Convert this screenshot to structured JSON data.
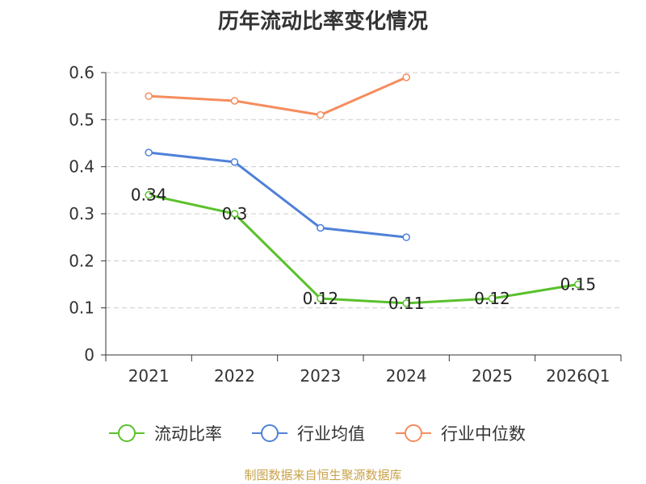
{
  "chart_data": {
    "type": "line",
    "title": "历年流动比率变化情况",
    "categories": [
      "2021",
      "2022",
      "2023",
      "2024",
      "2025",
      "2026Q1"
    ],
    "yticks": [
      "0",
      "0.1",
      "0.2",
      "0.3",
      "0.4",
      "0.5",
      "0.6"
    ],
    "ylim": [
      0,
      0.6
    ],
    "grid": "horizontal dashed",
    "legend_position": "bottom",
    "series": [
      {
        "name": "流动比率",
        "color": "#5ac12c",
        "values": [
          0.34,
          0.3,
          0.12,
          0.11,
          0.12,
          0.15
        ],
        "labels": [
          "0.34",
          "0.3",
          "0.12",
          "0.11",
          "0.12",
          "0.15"
        ]
      },
      {
        "name": "行业均值",
        "color": "#4f81d9",
        "values": [
          0.43,
          0.41,
          0.27,
          0.25,
          null,
          null
        ]
      },
      {
        "name": "行业中位数",
        "color": "#f58d5d",
        "values": [
          0.55,
          0.54,
          0.51,
          0.59,
          null,
          null
        ]
      }
    ],
    "source": "制图数据来自恒生聚源数据库"
  }
}
